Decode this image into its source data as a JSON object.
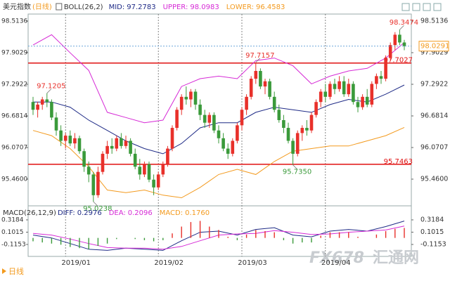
{
  "chart_data": [
    {
      "type": "candlestick",
      "title": "美元指数",
      "subtitle": "(日线)",
      "indicator": "BOLL(26,2)",
      "up_color": "#e8302a",
      "down_color": "#3a9a3a",
      "categories": [
        null,
        null,
        null,
        null,
        null,
        null,
        null,
        "2019/01",
        null,
        null,
        null,
        null,
        null,
        null,
        null,
        null,
        null,
        null,
        null,
        null,
        null,
        null,
        null,
        null,
        null,
        null,
        null,
        "2019/02",
        null,
        null,
        null,
        null,
        null,
        null,
        null,
        null,
        null,
        null,
        null,
        null,
        null,
        null,
        null,
        null,
        null,
        "2019/03",
        null,
        null,
        null,
        null,
        null,
        null,
        null,
        null,
        null,
        null,
        null,
        null,
        null,
        null,
        null,
        null,
        null,
        "2019/04",
        null,
        null,
        null,
        null,
        null,
        null,
        null,
        null,
        null,
        null,
        null,
        null,
        null,
        null,
        null,
        null,
        null
      ],
      "open": [
        96.95,
        96.8,
        96.9,
        97.0,
        96.95,
        96.65,
        96.4,
        96.2,
        96.3,
        96.15,
        96.25,
        96.0,
        95.7,
        95.55,
        95.15,
        95.6,
        95.95,
        96.1,
        96.05,
        96.25,
        96.1,
        96.2,
        95.95,
        95.7,
        95.55,
        95.75,
        95.45,
        95.3,
        95.55,
        95.75,
        96.05,
        96.45,
        96.8,
        97.05,
        97.0,
        97.15,
        96.9,
        96.7,
        96.55,
        96.7,
        96.4,
        96.25,
        96.05,
        95.95,
        96.2,
        96.5,
        96.8,
        97.05,
        97.4,
        97.55,
        97.25,
        97.35,
        97.05,
        96.8,
        96.6,
        96.45,
        96.2,
        95.95,
        96.35,
        96.45,
        96.4,
        96.7,
        96.95,
        97.15,
        97.05,
        97.3,
        97.2,
        97.35,
        97.1,
        97.3,
        96.95,
        96.85,
        97.05,
        96.9,
        97.3,
        97.45,
        97.4,
        97.8,
        98.05,
        98.25,
        98.1
      ],
      "high": [
        97.05,
        96.95,
        97.05,
        97.1205,
        97.0,
        96.75,
        96.5,
        96.35,
        96.4,
        96.35,
        96.3,
        96.05,
        95.8,
        95.6,
        95.7,
        96.0,
        96.2,
        96.25,
        96.3,
        96.35,
        96.3,
        96.25,
        96.05,
        95.85,
        95.8,
        95.8,
        95.55,
        95.6,
        95.8,
        96.1,
        96.5,
        96.85,
        97.1,
        97.25,
        97.2,
        97.2,
        97.0,
        96.8,
        96.75,
        96.75,
        96.5,
        96.35,
        96.15,
        96.25,
        96.55,
        96.85,
        97.1,
        97.45,
        97.7157,
        97.6,
        97.4,
        97.4,
        97.15,
        96.9,
        96.7,
        96.55,
        96.25,
        96.4,
        96.5,
        96.6,
        96.75,
        97.0,
        97.2,
        97.3,
        97.35,
        97.4,
        97.45,
        97.45,
        97.4,
        97.35,
        97.05,
        97.1,
        97.2,
        97.35,
        97.5,
        97.55,
        97.85,
        98.1,
        98.3,
        98.3474,
        98.15
      ],
      "low": [
        96.7,
        96.65,
        96.8,
        96.85,
        96.6,
        96.3,
        96.1,
        96.05,
        96.1,
        96.05,
        95.95,
        95.6,
        95.4,
        95.0238,
        95.1,
        95.55,
        95.85,
        95.95,
        96.0,
        96.05,
        96.05,
        95.9,
        95.65,
        95.45,
        95.5,
        95.4,
        95.15,
        95.25,
        95.5,
        95.7,
        96.0,
        96.4,
        96.7,
        96.9,
        96.85,
        96.8,
        96.6,
        96.45,
        96.45,
        96.35,
        96.15,
        96.0,
        95.85,
        95.9,
        96.15,
        96.4,
        96.7,
        97.0,
        97.3,
        97.2,
        97.1,
        97.0,
        96.75,
        96.55,
        96.35,
        96.15,
        95.735,
        95.9,
        96.2,
        96.3,
        96.35,
        96.65,
        96.85,
        96.95,
        97.0,
        97.1,
        97.15,
        97.05,
        97.05,
        96.9,
        96.75,
        96.8,
        96.85,
        96.85,
        97.2,
        97.3,
        97.35,
        97.75,
        97.95,
        98.05,
        97.95
      ],
      "close": [
        96.8,
        96.9,
        97.0,
        96.95,
        96.65,
        96.4,
        96.2,
        96.3,
        96.15,
        96.25,
        96.0,
        95.7,
        95.55,
        95.15,
        95.6,
        95.95,
        96.1,
        96.05,
        96.25,
        96.1,
        96.2,
        95.95,
        95.7,
        95.55,
        95.75,
        95.45,
        95.3,
        95.55,
        95.75,
        96.05,
        96.45,
        96.8,
        97.05,
        97.0,
        97.15,
        96.9,
        96.7,
        96.55,
        96.7,
        96.4,
        96.25,
        96.05,
        95.95,
        96.2,
        96.5,
        96.8,
        97.05,
        97.4,
        97.55,
        97.25,
        97.35,
        97.05,
        96.8,
        96.6,
        96.45,
        96.2,
        95.95,
        96.35,
        96.45,
        96.4,
        96.7,
        96.95,
        97.15,
        97.05,
        97.3,
        97.2,
        97.35,
        97.1,
        97.3,
        96.95,
        96.85,
        97.05,
        96.9,
        97.3,
        97.45,
        97.4,
        97.8,
        98.05,
        98.25,
        98.1,
        98.0291
      ],
      "series": [
        {
          "name": "MID:",
          "color": "#1e2a86",
          "x": [
            0,
            4,
            8,
            12,
            16,
            20,
            24,
            28,
            32,
            36,
            40,
            44,
            48,
            52,
            56,
            60,
            64,
            68,
            72,
            76,
            80
          ],
          "values": [
            96.95,
            96.95,
            96.85,
            96.6,
            96.4,
            96.2,
            96.05,
            95.95,
            96.15,
            96.45,
            96.55,
            96.55,
            96.75,
            96.85,
            96.8,
            96.75,
            96.9,
            97.0,
            96.95,
            97.1,
            97.2783
          ]
        },
        {
          "name": "UPPER:",
          "color": "#d62ad6",
          "x": [
            0,
            4,
            8,
            12,
            16,
            20,
            24,
            28,
            32,
            36,
            40,
            44,
            48,
            52,
            56,
            60,
            64,
            68,
            72,
            76,
            80
          ],
          "values": [
            98.05,
            98.25,
            97.9,
            97.56,
            96.75,
            96.65,
            96.55,
            96.6,
            97.25,
            97.4,
            97.45,
            97.4,
            97.75,
            97.8,
            97.65,
            97.3,
            97.45,
            97.55,
            97.6,
            97.8,
            98.0983
          ]
        },
        {
          "name": "LOWER:",
          "color": "#f39a1e",
          "x": [
            0,
            4,
            8,
            12,
            16,
            20,
            24,
            28,
            32,
            36,
            40,
            44,
            48,
            52,
            56,
            60,
            64,
            68,
            72,
            76,
            80
          ],
          "values": [
            96.4,
            96.3,
            96.05,
            95.7,
            95.25,
            95.2,
            95.25,
            95.15,
            95.1,
            95.3,
            95.55,
            95.65,
            95.55,
            95.8,
            96.0,
            96.05,
            96.1,
            96.1,
            96.2,
            96.3,
            96.4583
          ]
        }
      ],
      "hlines": [
        {
          "value": 97.7027,
          "color": "#e01010"
        },
        {
          "value": 95.7463,
          "color": "#e01010"
        }
      ],
      "annotations": [
        {
          "index": 3,
          "value": 97.1205,
          "kind": "high"
        },
        {
          "index": 13,
          "value": 95.0238,
          "kind": "low"
        },
        {
          "index": 48,
          "value": 97.7157,
          "kind": "high"
        },
        {
          "index": 56,
          "value": 95.735,
          "value_label": "95.7350",
          "kind": "low"
        },
        {
          "index": 79,
          "value": 98.3474,
          "kind": "high"
        }
      ],
      "last_color": "#6fa8dc",
      "ylim": [
        94.985,
        98.649
      ],
      "yticks": [
        98.5136,
        97.9029,
        97.2922,
        96.6814,
        96.0707,
        {
          "value": 95.46,
          "label": "95.4600"
        }
      ]
    },
    {
      "type": "macd",
      "title": "MACD(26,12,9)",
      "series": [
        {
          "name": "DIFF:",
          "color": "#1e2a86",
          "x": [
            0,
            4,
            8,
            12,
            16,
            20,
            24,
            28,
            32,
            36,
            40,
            44,
            48,
            52,
            56,
            60,
            64,
            68,
            72,
            76,
            80
          ],
          "values": [
            0.05,
            0.0,
            -0.1,
            -0.2,
            -0.22,
            -0.18,
            -0.2,
            -0.22,
            -0.05,
            0.1,
            0.12,
            0.05,
            0.15,
            0.18,
            0.05,
            0.02,
            0.12,
            0.15,
            0.12,
            0.2,
            0.2976
          ]
        },
        {
          "name": "DEA:",
          "color": "#d62ad6",
          "x": [
            0,
            4,
            8,
            12,
            16,
            20,
            24,
            28,
            32,
            36,
            40,
            44,
            48,
            52,
            56,
            60,
            64,
            68,
            72,
            76,
            80
          ],
          "values": [
            0.08,
            0.05,
            -0.02,
            -0.1,
            -0.17,
            -0.18,
            -0.18,
            -0.2,
            -0.15,
            -0.05,
            0.05,
            0.07,
            0.08,
            0.13,
            0.1,
            0.06,
            0.07,
            0.1,
            0.12,
            0.14,
            0.2096
          ]
        },
        {
          "name": "MACD:",
          "color": "#f39a1e",
          "last_label": "0.1760",
          "bar_up_color": "#e8302a",
          "bar_down_color": "#3a9a3a",
          "x": [
            0,
            2,
            4,
            6,
            8,
            10,
            12,
            14,
            16,
            18,
            20,
            22,
            24,
            26,
            28,
            30,
            32,
            34,
            36,
            38,
            40,
            42,
            44,
            46,
            48,
            50,
            52,
            54,
            56,
            58,
            60,
            62,
            64,
            66,
            68,
            70,
            72,
            74,
            76,
            78,
            80
          ],
          "values": [
            -0.06,
            -0.08,
            -0.1,
            -0.12,
            -0.16,
            -0.18,
            -0.2,
            -0.14,
            -0.1,
            -0.02,
            0.0,
            -0.02,
            -0.04,
            -0.06,
            -0.04,
            0.08,
            0.2,
            0.28,
            0.3,
            0.2,
            0.14,
            0.02,
            -0.04,
            0.06,
            0.14,
            0.12,
            0.1,
            -0.04,
            -0.1,
            -0.08,
            -0.08,
            0.04,
            0.1,
            0.1,
            0.1,
            0.02,
            0.0,
            0.06,
            0.12,
            0.16,
            0.176
          ]
        }
      ],
      "ylim": [
        -0.289,
        0.479
      ],
      "yticks": [
        0.3184,
        0.1015,
        -0.1153
      ]
    }
  ],
  "footer": "日线",
  "watermark": {
    "brand": "FX678",
    "name": "汇通网"
  }
}
